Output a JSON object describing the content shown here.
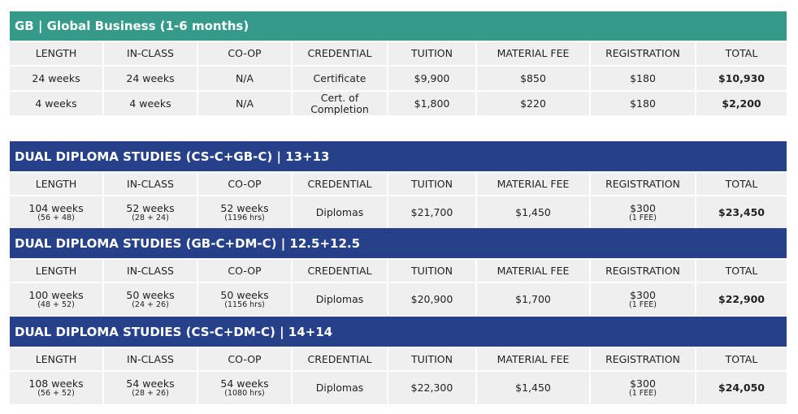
{
  "colors": {
    "teal": "#359a8a",
    "navy": "#26418a"
  },
  "columns": [
    "LENGTH",
    "IN-CLASS",
    "CO-OP",
    "CREDENTIAL",
    "TUITION",
    "MATERIAL FEE",
    "REGISTRATION",
    "TOTAL"
  ],
  "gb": {
    "title": "GB | Global Business (1-6 months)",
    "rows": [
      [
        "24 weeks",
        "24 weeks",
        "N/A",
        "Certificate",
        "$9,900",
        "$850",
        "$180",
        "$10,930"
      ],
      [
        "4 weeks",
        "4 weeks",
        "N/A",
        "Cert. of Completion",
        "$1,800",
        "$220",
        "$180",
        "$2,200"
      ]
    ]
  },
  "dual": [
    {
      "title": "DUAL DIPLOMA STUDIES (CS-C+GB-C) | 13+13",
      "row": [
        [
          "104 weeks",
          "(56 + 48)"
        ],
        [
          "52 weeks",
          "(28 + 24)"
        ],
        [
          "52 weeks",
          "(1196 hrs)"
        ],
        [
          "Diplomas",
          ""
        ],
        [
          "$21,700",
          ""
        ],
        [
          "$1,450",
          ""
        ],
        [
          "$300",
          "(1 FEE)"
        ],
        [
          "$23,450",
          ""
        ]
      ]
    },
    {
      "title": "DUAL DIPLOMA STUDIES (GB-C+DM-C) | 12.5+12.5",
      "row": [
        [
          "100 weeks",
          "(48 + 52)"
        ],
        [
          "50 weeks",
          "(24 + 26)"
        ],
        [
          "50 weeks",
          "(1156 hrs)"
        ],
        [
          "Diplomas",
          ""
        ],
        [
          "$20,900",
          ""
        ],
        [
          "$1,700",
          ""
        ],
        [
          "$300",
          "(1 FEE)"
        ],
        [
          "$22,900",
          ""
        ]
      ]
    },
    {
      "title": "DUAL DIPLOMA STUDIES (CS-C+DM-C) | 14+14",
      "row": [
        [
          "108 weeks",
          "(56 + 52)"
        ],
        [
          "54 weeks",
          "(28 + 26)"
        ],
        [
          "54 weeks",
          "(1080 hrs)"
        ],
        [
          "Diplomas",
          ""
        ],
        [
          "$22,300",
          ""
        ],
        [
          "$1,450",
          ""
        ],
        [
          "$300",
          "(1 FEE)"
        ],
        [
          "$24,050",
          ""
        ]
      ]
    }
  ]
}
